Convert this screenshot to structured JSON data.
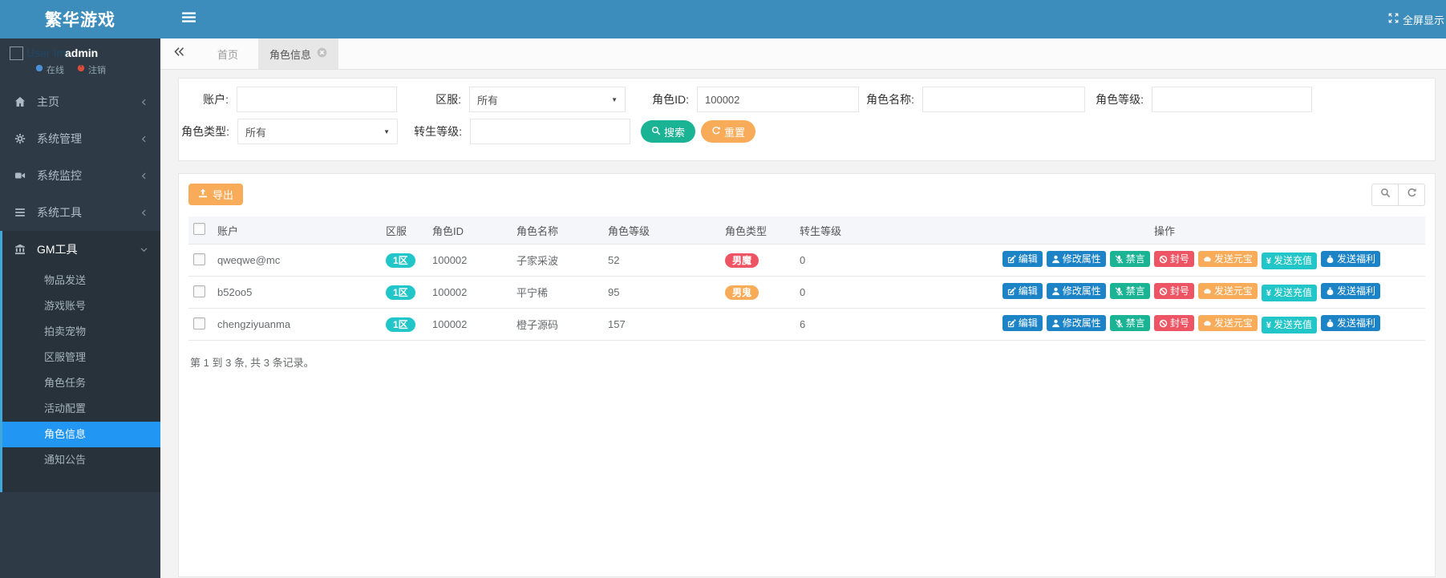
{
  "app": {
    "logo_text": "繁华游戏",
    "fullscreen_label": "全屏显示"
  },
  "sidebar": {
    "user": {
      "avatar_alt": "User Im",
      "username": "admin",
      "online_label": "在线",
      "logout_label": "注销"
    },
    "menu": [
      {
        "label": "主页",
        "icon": "home-icon"
      },
      {
        "label": "系统管理",
        "icon": "gear-icon"
      },
      {
        "label": "系统监控",
        "icon": "video-icon"
      },
      {
        "label": "系统工具",
        "icon": "list-icon"
      },
      {
        "label": "GM工具",
        "icon": "bank-icon",
        "expanded": true,
        "children": [
          "物品发送",
          "游戏账号",
          "拍卖宠物",
          "区服管理",
          "角色任务",
          "活动配置",
          "角色信息",
          "通知公告"
        ],
        "active_child": "角色信息"
      }
    ]
  },
  "tabs": {
    "items": [
      {
        "label": "首页",
        "active": false
      },
      {
        "label": "角色信息",
        "active": true,
        "closable": true
      }
    ]
  },
  "filters": {
    "account": {
      "label": "账户:",
      "value": ""
    },
    "server": {
      "label": "区服:",
      "value": "所有"
    },
    "role_id": {
      "label": "角色ID:",
      "value": "100002"
    },
    "role_name": {
      "label": "角色名称:",
      "value": ""
    },
    "role_level": {
      "label": "角色等级:",
      "value": ""
    },
    "role_type": {
      "label": "角色类型:",
      "value": "所有"
    },
    "rebirth_level": {
      "label": "转生等级:",
      "value": ""
    },
    "search_label": "搜索",
    "reset_label": "重置"
  },
  "toolbar": {
    "export_label": "导出"
  },
  "table": {
    "headers": [
      "账户",
      "区服",
      "角色ID",
      "角色名称",
      "角色等级",
      "角色类型",
      "转生等级",
      "操作"
    ],
    "server_badge_color": "#23c6c8",
    "rows": [
      {
        "account": "qweqwe@mc",
        "server": "1区",
        "role_id": "100002",
        "role_name": "子家采波",
        "role_level": "52",
        "role_type": "男魔",
        "role_type_color": "#ed5565",
        "rebirth": "0"
      },
      {
        "account": "b52oo5",
        "server": "1区",
        "role_id": "100002",
        "role_name": "平宁稀",
        "role_level": "95",
        "role_type": "男鬼",
        "role_type_color": "#f8ac59",
        "rebirth": "0"
      },
      {
        "account": "chengziyuanma",
        "server": "1区",
        "role_id": "100002",
        "role_name": "橙子源码",
        "role_level": "157",
        "role_type": "",
        "role_type_color": "",
        "rebirth": "6"
      }
    ],
    "actions": [
      {
        "name": "edit-button",
        "label": "编辑",
        "icon": "edit-icon",
        "color": "#1c84c6"
      },
      {
        "name": "modify-attrs-button",
        "label": "修改属性",
        "icon": "user-icon",
        "color": "#1c84c6"
      },
      {
        "name": "mute-button",
        "label": "禁言",
        "icon": "mute-icon",
        "color": "#1ab394"
      },
      {
        "name": "ban-button",
        "label": "封号",
        "icon": "ban-icon",
        "color": "#ed5565"
      },
      {
        "name": "send-ingot-button",
        "label": "发送元宝",
        "icon": "ingot-icon",
        "color": "#f8ac59"
      },
      {
        "name": "send-recharge-button",
        "label": "发送充值",
        "icon": "yen-icon",
        "color": "#23c6c8"
      },
      {
        "name": "send-welfare-button",
        "label": "发送福利",
        "icon": "welfare-icon",
        "color": "#1c84c6"
      }
    ],
    "summary": "第 1 到 3 条, 共 3 条记录。"
  },
  "colors": {
    "header_bg": "#3c8dbc",
    "sidebar_bg": "#2e3b47",
    "submenu_bg": "#27323a",
    "submenu_accent": "#3fa7dc",
    "active_item_bg": "#2196f3",
    "content_bg": "#f3f3f4",
    "panel_border": "#e7e7e7"
  }
}
